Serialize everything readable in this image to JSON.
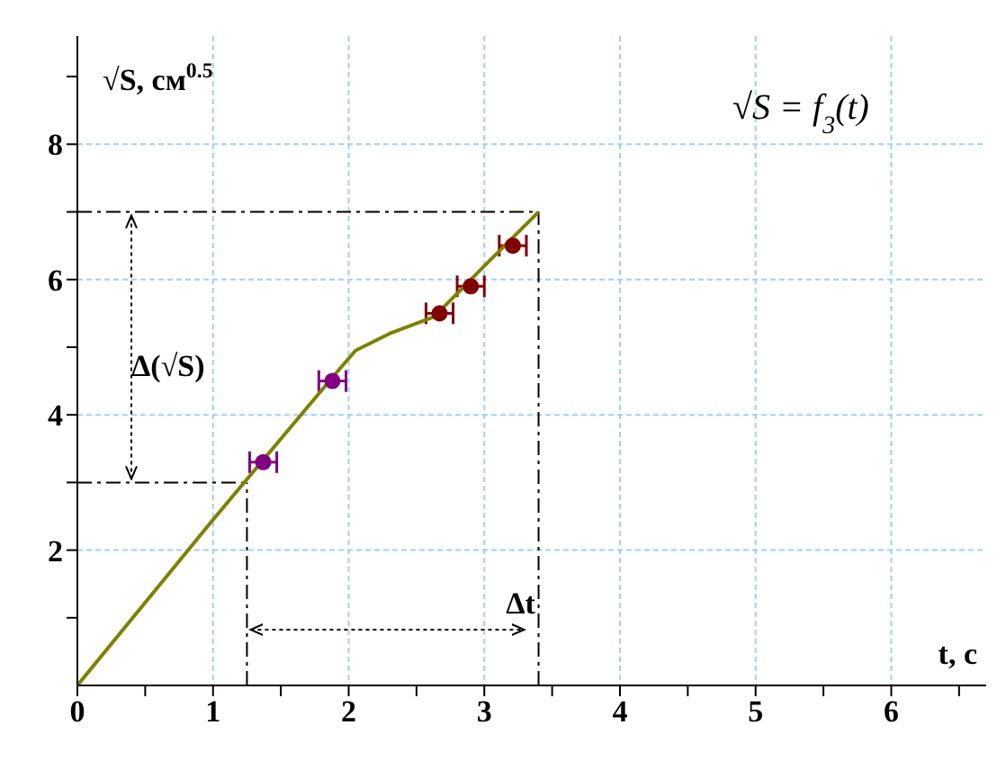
{
  "chart_data": {
    "type": "scatter",
    "title": "√S = f$_{3}$(t)",
    "xlabel": "t, с",
    "ylabel": "√S, см$^{0.5}$",
    "xlim": [
      0,
      6.7
    ],
    "ylim": [
      0,
      9.6
    ],
    "xticks": [
      0,
      {
        "value": 0.5,
        "label": null
      },
      1,
      {
        "value": 1.5,
        "label": null
      },
      2,
      {
        "value": 2.5,
        "label": null
      },
      3,
      {
        "value": 3.5,
        "label": null
      },
      4,
      {
        "value": 4.5,
        "label": null
      },
      5,
      {
        "value": 5.5,
        "label": null
      },
      6,
      {
        "value": 6.5,
        "label": null
      }
    ],
    "yticks": [
      {
        "value": 1,
        "label": null
      },
      2,
      {
        "value": 3,
        "label": null
      },
      4,
      {
        "value": 5,
        "label": null
      },
      6,
      {
        "value": 7,
        "label": null
      },
      8,
      {
        "value": 9,
        "label": null
      }
    ],
    "grid": true,
    "marker": "circle",
    "series": [
      {
        "color": "#800080",
        "x": [
          1.37,
          1.88
        ],
        "values": [
          3.3,
          4.5
        ],
        "xerrors": [
          0.1,
          0.1
        ]
      },
      {
        "color": "#800000",
        "x": [
          2.67,
          2.9,
          3.21
        ],
        "values": [
          5.5,
          5.9,
          6.5
        ],
        "xerrors": [
          0.1,
          0.1,
          0.1
        ]
      },
      {
        "type": "line",
        "color": "#808000",
        "marker": "none",
        "x": [
          0,
          1,
          1.9,
          2.05,
          2.3,
          2.63,
          3.0,
          3.4
        ],
        "values": [
          0,
          2.45,
          4.6,
          4.95,
          5.2,
          5.45,
          6.2,
          7.0
        ]
      }
    ],
    "ref_lines": [
      {
        "axis": "y",
        "value": 7,
        "line_style": "dashdot",
        "color": "#000000"
      },
      {
        "axis": "y",
        "value": 3,
        "line_style": "dashdot",
        "color": "#000000"
      },
      {
        "axis": "x",
        "value": 3.4,
        "line_style": "dashdot",
        "color": "#000000"
      },
      {
        "axis": "x",
        "value": 1.25,
        "line_style": "dashdot",
        "color": "#000000"
      }
    ],
    "annotations": [
      "Δ(√S)",
      "Δt"
    ]
  }
}
